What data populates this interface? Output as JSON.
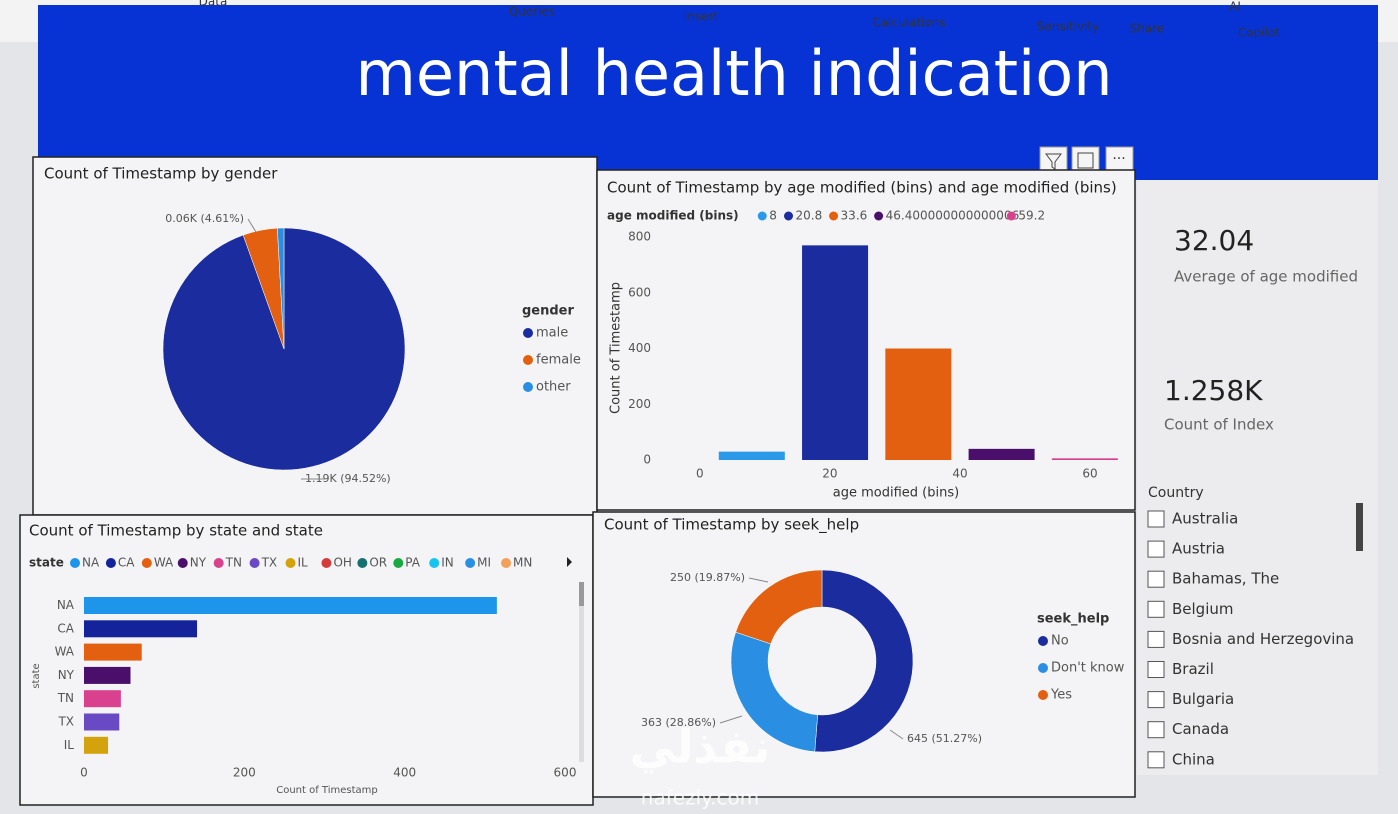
{
  "ribbon": {
    "items": [
      "Data",
      "Queries",
      "Insert",
      "Calculations",
      "Sensitivity",
      "Share",
      "AI",
      "Copilot"
    ]
  },
  "header": {
    "title": "mental health indication"
  },
  "chart_data": [
    {
      "type": "pie",
      "title": "Count of Timestamp by gender",
      "legend_title": "gender",
      "categories": [
        "male",
        "female",
        "other"
      ],
      "values": [
        1190,
        58,
        11
      ],
      "value_labels": [
        "1.19K (94.52%)",
        "0.06K (4.61%)",
        null
      ],
      "colors": [
        "#1a2c9e",
        "#e2600f",
        "#2a8fe3"
      ]
    },
    {
      "type": "bar",
      "title": "Count of Timestamp by age modified (bins) and age modified (bins)",
      "legend_title": "age modified (bins)",
      "series": [
        {
          "name": "8",
          "color": "#2a9ae8",
          "x": [
            8
          ],
          "values": [
            30
          ]
        },
        {
          "name": "20.8",
          "color": "#1a2c9e",
          "x": [
            20.8
          ],
          "values": [
            770
          ]
        },
        {
          "name": "33.6",
          "color": "#e2600f",
          "x": [
            33.6
          ],
          "values": [
            400
          ]
        },
        {
          "name": "46.400000000000006",
          "color": "#4a0f6b",
          "x": [
            46.400000000000006
          ],
          "values": [
            40
          ]
        },
        {
          "name": "59.2",
          "color": "#d9418f",
          "x": [
            59.2
          ],
          "values": [
            6
          ]
        }
      ],
      "xlim": [
        -1.5,
        64.6
      ],
      "xticks": [
        0,
        20,
        40,
        60
      ],
      "ylim": [
        0,
        800
      ],
      "yticks": [
        0,
        200,
        400,
        600,
        800
      ],
      "x_label": "age modified (bins)",
      "y_label": "Count of Timestamp"
    },
    {
      "type": "bar",
      "orientation": "horizontal",
      "title": "Count of Timestamp by state and state",
      "legend_title": "state",
      "legend": [
        {
          "name": "NA",
          "color": "#1c95ea"
        },
        {
          "name": "CA",
          "color": "#14239a"
        },
        {
          "name": "WA",
          "color": "#e2600f"
        },
        {
          "name": "NY",
          "color": "#4a0f6b"
        },
        {
          "name": "TN",
          "color": "#d9418f"
        },
        {
          "name": "TX",
          "color": "#6a4ac4"
        },
        {
          "name": "IL",
          "color": "#d4a20c"
        },
        {
          "name": "OH",
          "color": "#d43c3c"
        },
        {
          "name": "OR",
          "color": "#16706f"
        },
        {
          "name": "PA",
          "color": "#1aa840"
        },
        {
          "name": "IN",
          "color": "#18c4ee"
        },
        {
          "name": "MI",
          "color": "#2a8fe3"
        },
        {
          "name": "MN",
          "color": "#f5a05a"
        }
      ],
      "categories": [
        "NA",
        "CA",
        "WA",
        "NY",
        "TN",
        "TX",
        "IL"
      ],
      "values": [
        515,
        141,
        72,
        58,
        46,
        44,
        30
      ],
      "xlim": [
        0,
        600
      ],
      "xticks": [
        0,
        200,
        400,
        600
      ],
      "x_label": "Count of Timestamp",
      "y_label": "state"
    },
    {
      "type": "donut",
      "title": "Count of Timestamp by seek_help",
      "legend_title": "seek_help",
      "categories": [
        "No",
        "Don't know",
        "Yes"
      ],
      "values": [
        645,
        363,
        250
      ],
      "value_labels": [
        "645 (51.27%)",
        "363 (28.86%)",
        "250 (19.87%)"
      ],
      "colors": [
        "#1a2c9e",
        "#2a8fe3",
        "#e2600f"
      ]
    }
  ],
  "cards": [
    {
      "value": "32.04",
      "label": "Average of age modified"
    },
    {
      "value": "1.258K",
      "label": "Count of Index"
    }
  ],
  "slicer": {
    "title": "Country",
    "items": [
      "Australia",
      "Austria",
      "Bahamas, The",
      "Belgium",
      "Bosnia and Herzegovina",
      "Brazil",
      "Bulgaria",
      "Canada",
      "China"
    ]
  },
  "watermark": {
    "arabic": "نفذلي",
    "latin": "nafezly.com"
  }
}
